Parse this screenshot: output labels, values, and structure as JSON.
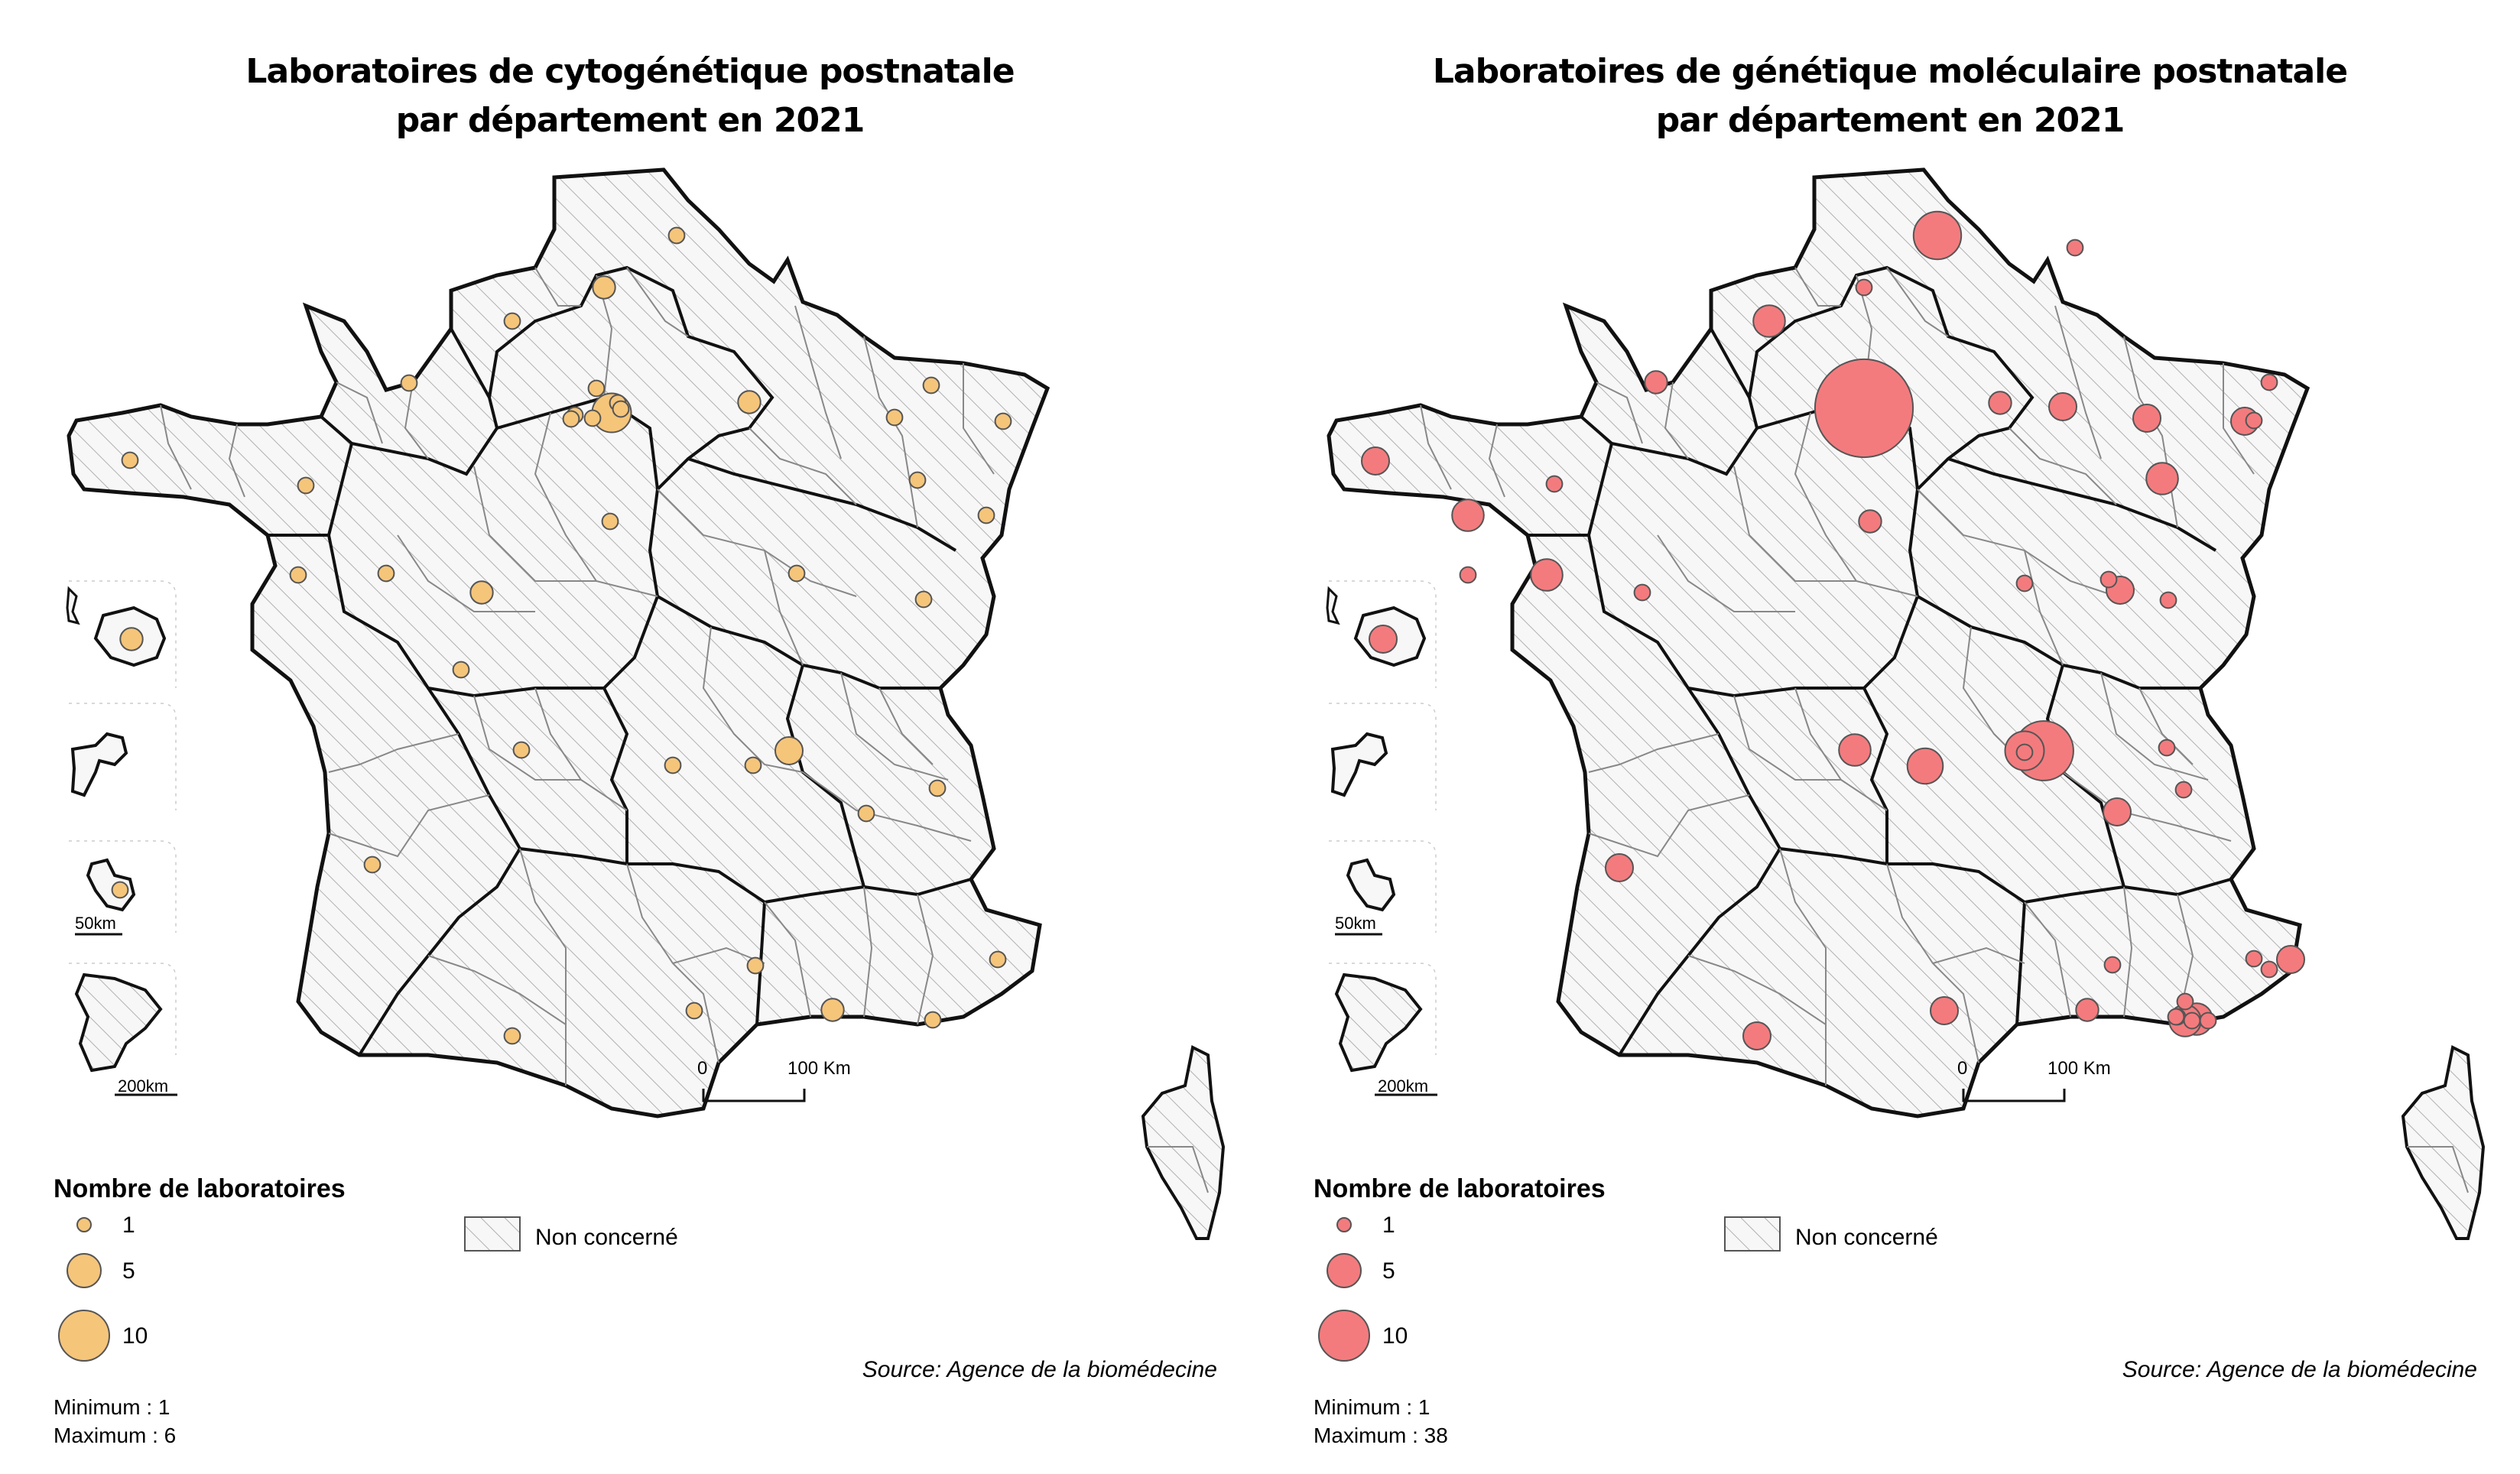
{
  "panels": [
    {
      "title_line1": "Laboratoires de cytogénétique postnatale",
      "title_line2": "par département en 2021",
      "bubble_color": "#f5c57a",
      "legend": {
        "title": "Nombre de laboratoires",
        "values": [
          "1",
          "5",
          "10"
        ],
        "non_concerne": "Non concerné"
      },
      "source": "Source: Agence de la biomédecine",
      "minimum": "Minimum : 1",
      "maximum": "Maximum : 6",
      "scale": {
        "zero": "0",
        "hundred": "100 Km"
      },
      "inset_scale_small": "50km",
      "inset_scale_large": "200km",
      "bubbles": [
        1,
        2,
        1,
        1,
        1,
        1,
        1,
        1,
        1,
        1,
        6,
        2,
        1,
        1,
        1,
        1,
        1,
        1,
        1,
        1,
        2,
        1,
        1,
        1,
        1,
        2,
        1,
        1,
        3,
        1,
        1,
        1,
        1,
        1,
        1,
        1,
        2,
        1,
        1,
        1,
        1
      ]
    },
    {
      "title_line1": "Laboratoires de génétique moléculaire postnatale",
      "title_line2": "par département en 2021",
      "bubble_color": "#f37b7e",
      "legend": {
        "title": "Nombre de laboratoires",
        "values": [
          "1",
          "5",
          "10"
        ],
        "non_concerne": "Non concerné"
      },
      "source": "Source: Agence de la biomédecine",
      "minimum": "Minimum : 1",
      "maximum": "Maximum : 38",
      "scale": {
        "zero": "0",
        "hundred": "100 Km"
      },
      "inset_scale_small": "50km",
      "inset_scale_large": "200km",
      "bubbles": [
        9,
        1,
        1,
        4,
        3,
        38,
        3,
        1,
        2,
        2,
        3,
        3,
        1,
        3,
        1,
        4,
        4,
        2,
        1,
        1,
        4,
        1,
        1,
        3,
        3,
        1,
        14,
        6,
        1,
        4,
        5,
        1,
        3,
        3,
        1,
        3,
        2,
        3,
        4,
        1,
        4,
        1,
        1,
        1,
        1,
        1,
        1,
        1
      ]
    }
  ],
  "colors": {
    "stroke_regions": "#111111",
    "stroke_departments": "#888888",
    "fill_country": "#f7f7f7",
    "hatch": "#aaaaaa"
  }
}
